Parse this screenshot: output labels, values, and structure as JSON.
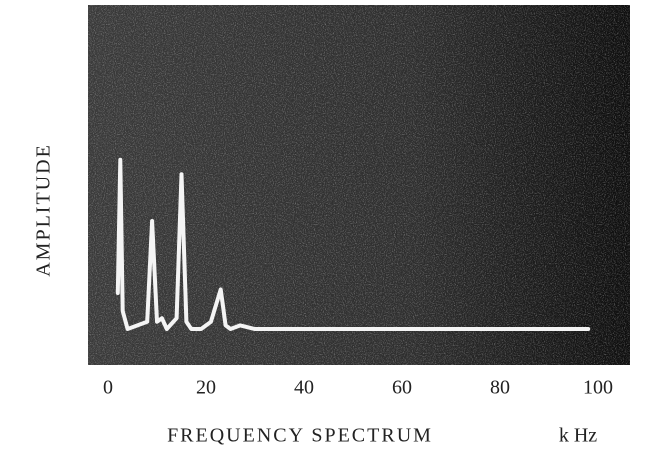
{
  "chart_data": {
    "type": "line",
    "x_label": "FREQUENCY SPECTRUM",
    "x_unit": "k Hz",
    "y_label": "AMPLITUDE",
    "x": [
      2,
      2.5,
      3,
      4,
      6,
      8,
      9,
      10,
      11,
      12,
      14,
      15,
      16,
      17,
      19,
      21,
      23,
      24,
      25,
      27,
      30,
      40,
      50,
      60,
      70,
      80,
      90,
      98
    ],
    "series": [
      {
        "color": "#f4f4f4",
        "values": [
          0.2,
          0.57,
          0.15,
          0.1,
          0.11,
          0.12,
          0.4,
          0.12,
          0.13,
          0.1,
          0.13,
          0.53,
          0.12,
          0.1,
          0.1,
          0.12,
          0.21,
          0.11,
          0.1,
          0.11,
          0.1,
          0.1,
          0.1,
          0.1,
          0.1,
          0.1,
          0.1,
          0.1
        ]
      }
    ],
    "xlim": [
      0,
      100
    ],
    "xticks": [
      0,
      20,
      40,
      60,
      80,
      100
    ],
    "ylim": [
      0,
      1
    ]
  }
}
